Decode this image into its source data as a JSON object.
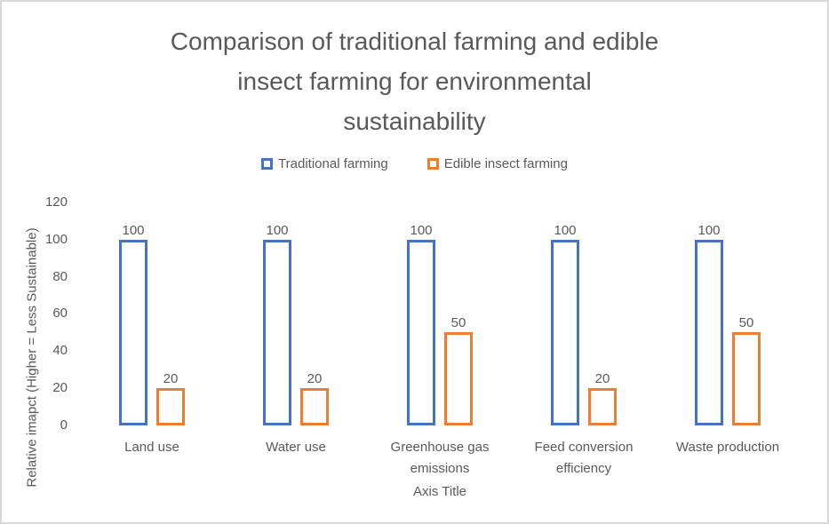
{
  "figure": {
    "background": "#ffffff",
    "border_color": "#d9d9d9",
    "text_color": "#595959"
  },
  "chart_data": {
    "type": "bar",
    "title": "Comparison of traditional farming and edible insect farming for environmental sustainability",
    "title_lines": [
      "Comparison of traditional farming and edible",
      "insect farming for environmental",
      "sustainability"
    ],
    "categories": [
      "Land use",
      "Water use",
      "Greenhouse gas emissions",
      "Feed conversion efficiency",
      "Waste production"
    ],
    "series": [
      {
        "name": "Traditional farming",
        "color": "#4472C4",
        "values": [
          100,
          100,
          100,
          100,
          100
        ]
      },
      {
        "name": "Edible insect farming",
        "color": "#ED7D31",
        "values": [
          20,
          20,
          50,
          20,
          50
        ]
      }
    ],
    "xlabel": "Axis Title",
    "ylabel": "Relative imapct (Higher = Less Sustainable)",
    "ylim": [
      0,
      120
    ],
    "yticks": [
      0,
      20,
      40,
      60,
      80,
      100,
      120
    ],
    "grid": false,
    "legend_position": "top",
    "bar_style": "outline",
    "bar_fill": "#ffffff",
    "data_labels": true
  }
}
